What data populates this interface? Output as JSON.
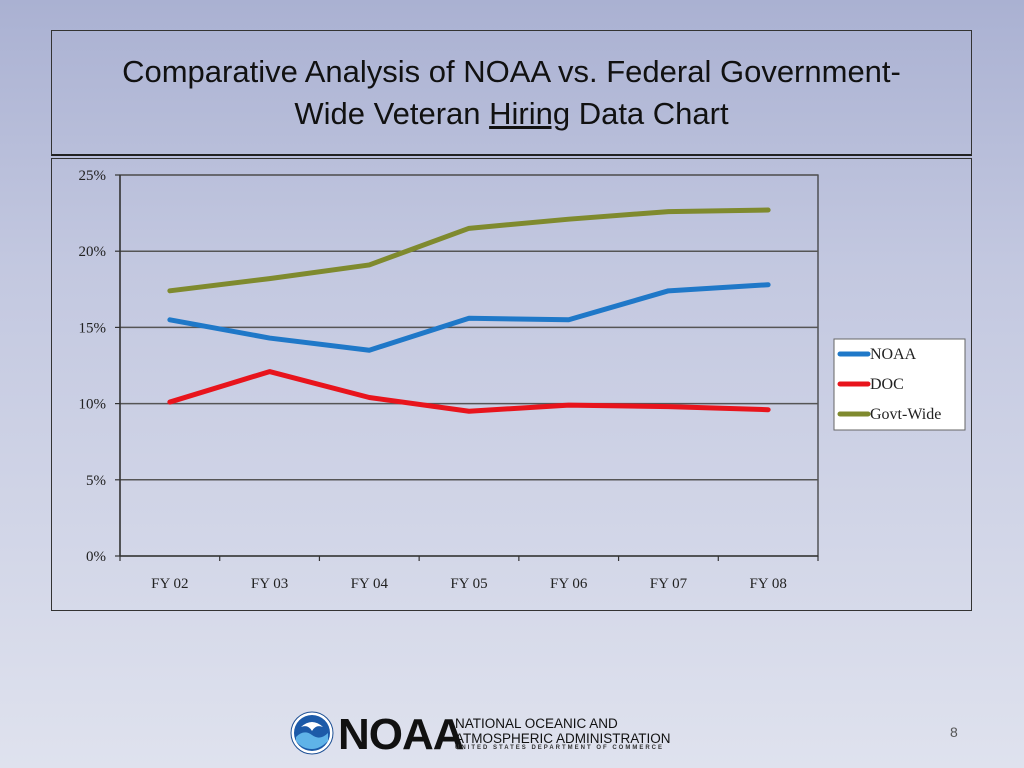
{
  "slide": {
    "title_line1": "Comparative Analysis of NOAA vs. Federal Government-",
    "title_line2_pre": "Wide Veteran ",
    "title_line2_underlined": "Hiring",
    "title_line2_post": " Data Chart",
    "page_number": "8"
  },
  "footer": {
    "logo_text": "NOAA",
    "agency_line1": "NATIONAL OCEANIC AND",
    "agency_line2": "ATMOSPHERIC ADMINISTRATION",
    "department": "UNITED STATES DEPARTMENT OF COMMERCE"
  },
  "chart_data": {
    "type": "line",
    "title": "",
    "xlabel": "",
    "ylabel": "",
    "categories": [
      "FY 02",
      "FY 03",
      "FY 04",
      "FY 05",
      "FY 06",
      "FY 07",
      "FY 08"
    ],
    "ylim": [
      0,
      25
    ],
    "yticks": [
      0,
      5,
      10,
      15,
      20,
      25
    ],
    "ytick_labels": [
      "0%",
      "5%",
      "10%",
      "15%",
      "20%",
      "25%"
    ],
    "grid": true,
    "legend_position": "right",
    "series": [
      {
        "name": "NOAA",
        "color": "#1f78c8",
        "values": [
          15.5,
          14.3,
          13.5,
          15.6,
          15.5,
          17.4,
          17.8
        ]
      },
      {
        "name": "DOC",
        "color": "#e8141c",
        "values": [
          10.1,
          12.1,
          10.4,
          9.5,
          9.9,
          9.8,
          9.6
        ]
      },
      {
        "name": "Govt-Wide",
        "color": "#7f8a2e",
        "values": [
          17.4,
          18.2,
          19.1,
          21.5,
          22.1,
          22.6,
          22.7
        ]
      }
    ]
  }
}
